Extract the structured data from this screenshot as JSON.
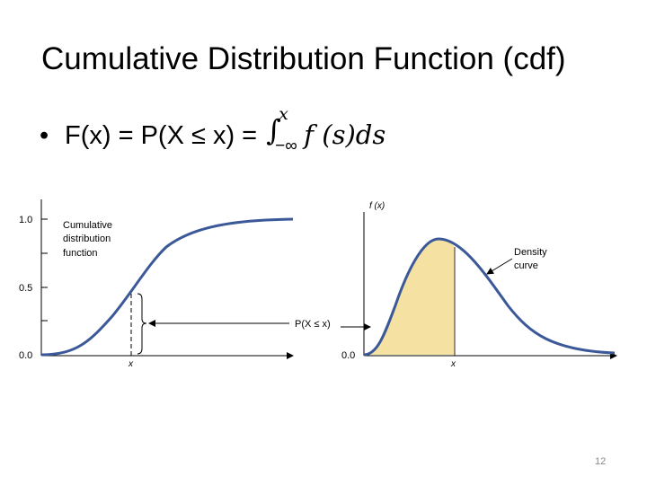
{
  "title": "Cumulative Distribution Function (cdf)",
  "formula": {
    "bullet": "•",
    "lhs": "F(x) = P(X ≤ x) = ",
    "integral_sign": "∫",
    "upper_limit": "x",
    "lower_limit": "−∞",
    "integrand": "f (s)ds"
  },
  "left_plot": {
    "y_tick_labels": [
      "1.0",
      "0.5",
      "0.0"
    ],
    "curve_label": [
      "Cumulative",
      "distribution",
      "function"
    ],
    "x_marker": "x"
  },
  "probability_label": "P(X ≤ x)",
  "right_plot": {
    "y_axis_label": "f (x)",
    "y_origin_label": "0.0",
    "curve_label": [
      "Density",
      "curve"
    ],
    "x_marker": "x"
  },
  "page_number": "12",
  "colors": {
    "curve": "#3b5998",
    "shade": "#f5e2a2"
  }
}
